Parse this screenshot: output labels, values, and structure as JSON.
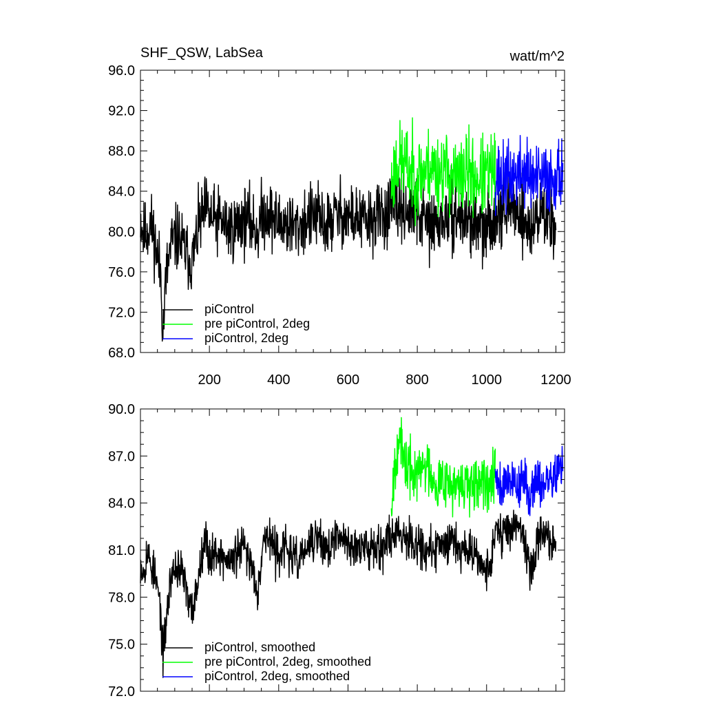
{
  "chart_data": [
    {
      "type": "line",
      "title": "SHF_QSW, LabSea",
      "units": "watt/m^2",
      "xlabel": "",
      "ylabel": "",
      "xlim": [
        1,
        1225
      ],
      "ylim": [
        68,
        96
      ],
      "x_ticks": [
        200,
        400,
        600,
        800,
        1000,
        1200
      ],
      "x_tick_labels": [
        "200",
        "400",
        "600",
        "800",
        "1000",
        "1200"
      ],
      "y_ticks": [
        68,
        72,
        76,
        80,
        84,
        88,
        92,
        96
      ],
      "y_tick_labels": [
        "68.0",
        "72.0",
        "76.0",
        "80.0",
        "84.0",
        "88.0",
        "92.0",
        "96.0"
      ],
      "legend_position": "bottom-left",
      "series": [
        {
          "name": "piControl",
          "color": "#000000",
          "x_range": [
            1,
            1200
          ],
          "points": [
            [
              1,
              81.5
            ],
            [
              10,
              79.5
            ],
            [
              20,
              80.2
            ],
            [
              30,
              80.8
            ],
            [
              40,
              79.6
            ],
            [
              50,
              77.5
            ],
            [
              60,
              76.0
            ],
            [
              66,
              70.0
            ],
            [
              75,
              75.5
            ],
            [
              90,
              78.8
            ],
            [
              110,
              79.5
            ],
            [
              130,
              78.0
            ],
            [
              150,
              77.0
            ],
            [
              170,
              80.5
            ],
            [
              190,
              82.2
            ],
            [
              210,
              81.0
            ],
            [
              230,
              81.2
            ],
            [
              250,
              80.5
            ],
            [
              270,
              80.2
            ],
            [
              290,
              81.0
            ],
            [
              310,
              81.2
            ],
            [
              340,
              80.0
            ],
            [
              350,
              81.5
            ],
            [
              370,
              82.0
            ],
            [
              390,
              81.0
            ],
            [
              420,
              80.8
            ],
            [
              450,
              80.3
            ],
            [
              480,
              81.2
            ],
            [
              510,
              81.5
            ],
            [
              540,
              80.5
            ],
            [
              560,
              81.5
            ],
            [
              580,
              81.8
            ],
            [
              600,
              81.5
            ],
            [
              630,
              81.2
            ],
            [
              660,
              81.0
            ],
            [
              690,
              81.5
            ],
            [
              720,
              82.0
            ],
            [
              750,
              82.5
            ],
            [
              780,
              82.0
            ],
            [
              810,
              81.5
            ],
            [
              840,
              80.5
            ],
            [
              870,
              81.0
            ],
            [
              900,
              81.8
            ],
            [
              930,
              81.3
            ],
            [
              960,
              81.0
            ],
            [
              990,
              80.0
            ],
            [
              1010,
              80.5
            ],
            [
              1030,
              82.5
            ],
            [
              1060,
              82.0
            ],
            [
              1090,
              82.5
            ],
            [
              1110,
              81.0
            ],
            [
              1130,
              80.0
            ],
            [
              1150,
              82.0
            ],
            [
              1170,
              81.5
            ],
            [
              1190,
              81.2
            ],
            [
              1200,
              81.2
            ]
          ],
          "noise_amplitude": 2.2,
          "noise_seed": 11
        },
        {
          "name": "pre piControl, 2deg",
          "color": "#00ff00",
          "x_range": [
            725,
            1025
          ],
          "points": [
            [
              725,
              84.5
            ],
            [
              740,
              87.0
            ],
            [
              760,
              86.8
            ],
            [
              780,
              86.0
            ],
            [
              800,
              85.5
            ],
            [
              820,
              86.0
            ],
            [
              840,
              86.5
            ],
            [
              860,
              85.8
            ],
            [
              880,
              86.2
            ],
            [
              900,
              85.5
            ],
            [
              920,
              85.0
            ],
            [
              940,
              86.0
            ],
            [
              960,
              85.5
            ],
            [
              980,
              85.2
            ],
            [
              1000,
              85.5
            ],
            [
              1025,
              86.0
            ]
          ],
          "noise_amplitude": 2.6,
          "noise_seed": 23
        },
        {
          "name": "piControl, 2deg",
          "color": "#0000ff",
          "x_range": [
            1025,
            1220
          ],
          "points": [
            [
              1025,
              85.5
            ],
            [
              1050,
              85.2
            ],
            [
              1080,
              85.5
            ],
            [
              1110,
              86.0
            ],
            [
              1140,
              85.0
            ],
            [
              1170,
              85.2
            ],
            [
              1200,
              85.5
            ],
            [
              1220,
              86.0
            ]
          ],
          "noise_amplitude": 2.3,
          "noise_seed": 37
        }
      ]
    },
    {
      "type": "line",
      "title": "",
      "xlabel": "",
      "ylabel": "",
      "xlim": [
        1,
        1225
      ],
      "ylim": [
        72,
        90
      ],
      "x_ticks": [
        200,
        400,
        600,
        800,
        1000,
        1200
      ],
      "x_tick_labels": [],
      "y_ticks": [
        72,
        75,
        78,
        81,
        84,
        87,
        90
      ],
      "y_tick_labels": [
        "72.0",
        "75.0",
        "78.0",
        "81.0",
        "84.0",
        "87.0",
        "90.0"
      ],
      "legend_position": "bottom-left",
      "series": [
        {
          "name": "piControl, smoothed",
          "color": "#000000",
          "x_range": [
            1,
            1200
          ],
          "points": [
            [
              1,
              80.3
            ],
            [
              10,
              79.6
            ],
            [
              20,
              80.9
            ],
            [
              30,
              80.2
            ],
            [
              40,
              79.5
            ],
            [
              50,
              78.5
            ],
            [
              58,
              77.5
            ],
            [
              66,
              74.1
            ],
            [
              75,
              76.5
            ],
            [
              90,
              79.5
            ],
            [
              110,
              80.0
            ],
            [
              130,
              79.0
            ],
            [
              140,
              77.2
            ],
            [
              155,
              77.5
            ],
            [
              170,
              79.5
            ],
            [
              185,
              82.0
            ],
            [
              200,
              80.5
            ],
            [
              220,
              81.0
            ],
            [
              240,
              80.5
            ],
            [
              260,
              80.2
            ],
            [
              280,
              80.8
            ],
            [
              300,
              81.2
            ],
            [
              320,
              80.2
            ],
            [
              340,
              78.5
            ],
            [
              355,
              81.5
            ],
            [
              370,
              82.0
            ],
            [
              390,
              80.8
            ],
            [
              420,
              81.2
            ],
            [
              450,
              80.2
            ],
            [
              480,
              81.0
            ],
            [
              510,
              81.8
            ],
            [
              540,
              81.0
            ],
            [
              560,
              81.5
            ],
            [
              580,
              81.8
            ],
            [
              600,
              81.5
            ],
            [
              620,
              81.2
            ],
            [
              640,
              81.0
            ],
            [
              660,
              81.2
            ],
            [
              680,
              81.5
            ],
            [
              700,
              81.2
            ],
            [
              720,
              81.8
            ],
            [
              740,
              82.2
            ],
            [
              760,
              82.0
            ],
            [
              780,
              81.8
            ],
            [
              800,
              81.5
            ],
            [
              820,
              81.0
            ],
            [
              840,
              80.8
            ],
            [
              860,
              81.2
            ],
            [
              880,
              81.5
            ],
            [
              900,
              81.8
            ],
            [
              920,
              81.3
            ],
            [
              940,
              81.0
            ],
            [
              960,
              81.2
            ],
            [
              980,
              80.5
            ],
            [
              995,
              79.5
            ],
            [
              1010,
              80.2
            ],
            [
              1030,
              82.3
            ],
            [
              1050,
              82.0
            ],
            [
              1070,
              82.5
            ],
            [
              1090,
              82.8
            ],
            [
              1110,
              81.5
            ],
            [
              1130,
              79.5
            ],
            [
              1150,
              81.8
            ],
            [
              1170,
              82.2
            ],
            [
              1190,
              81.5
            ],
            [
              1200,
              81.3
            ]
          ],
          "noise_amplitude": 0.9,
          "noise_seed": 53
        },
        {
          "name": "pre piControl, 2deg, smoothed",
          "color": "#00ff00",
          "x_range": [
            725,
            1025
          ],
          "points": [
            [
              725,
              84.0
            ],
            [
              735,
              86.5
            ],
            [
              745,
              88.2
            ],
            [
              760,
              86.8
            ],
            [
              780,
              86.0
            ],
            [
              800,
              85.8
            ],
            [
              820,
              86.5
            ],
            [
              840,
              86.0
            ],
            [
              860,
              85.2
            ],
            [
              880,
              85.8
            ],
            [
              900,
              85.0
            ],
            [
              920,
              84.8
            ],
            [
              940,
              85.5
            ],
            [
              960,
              84.5
            ],
            [
              980,
              85.2
            ],
            [
              1000,
              85.0
            ],
            [
              1025,
              86.8
            ]
          ],
          "noise_amplitude": 1.2,
          "noise_seed": 67
        },
        {
          "name": "piControl, 2deg, smoothed",
          "color": "#0000ff",
          "x_range": [
            1025,
            1220
          ],
          "points": [
            [
              1025,
              86.0
            ],
            [
              1045,
              85.0
            ],
            [
              1065,
              85.8
            ],
            [
              1085,
              85.0
            ],
            [
              1105,
              85.5
            ],
            [
              1125,
              84.5
            ],
            [
              1145,
              85.8
            ],
            [
              1165,
              85.0
            ],
            [
              1185,
              85.5
            ],
            [
              1205,
              86.0
            ],
            [
              1220,
              86.3
            ]
          ],
          "noise_amplitude": 1.0,
          "noise_seed": 79
        }
      ]
    }
  ]
}
